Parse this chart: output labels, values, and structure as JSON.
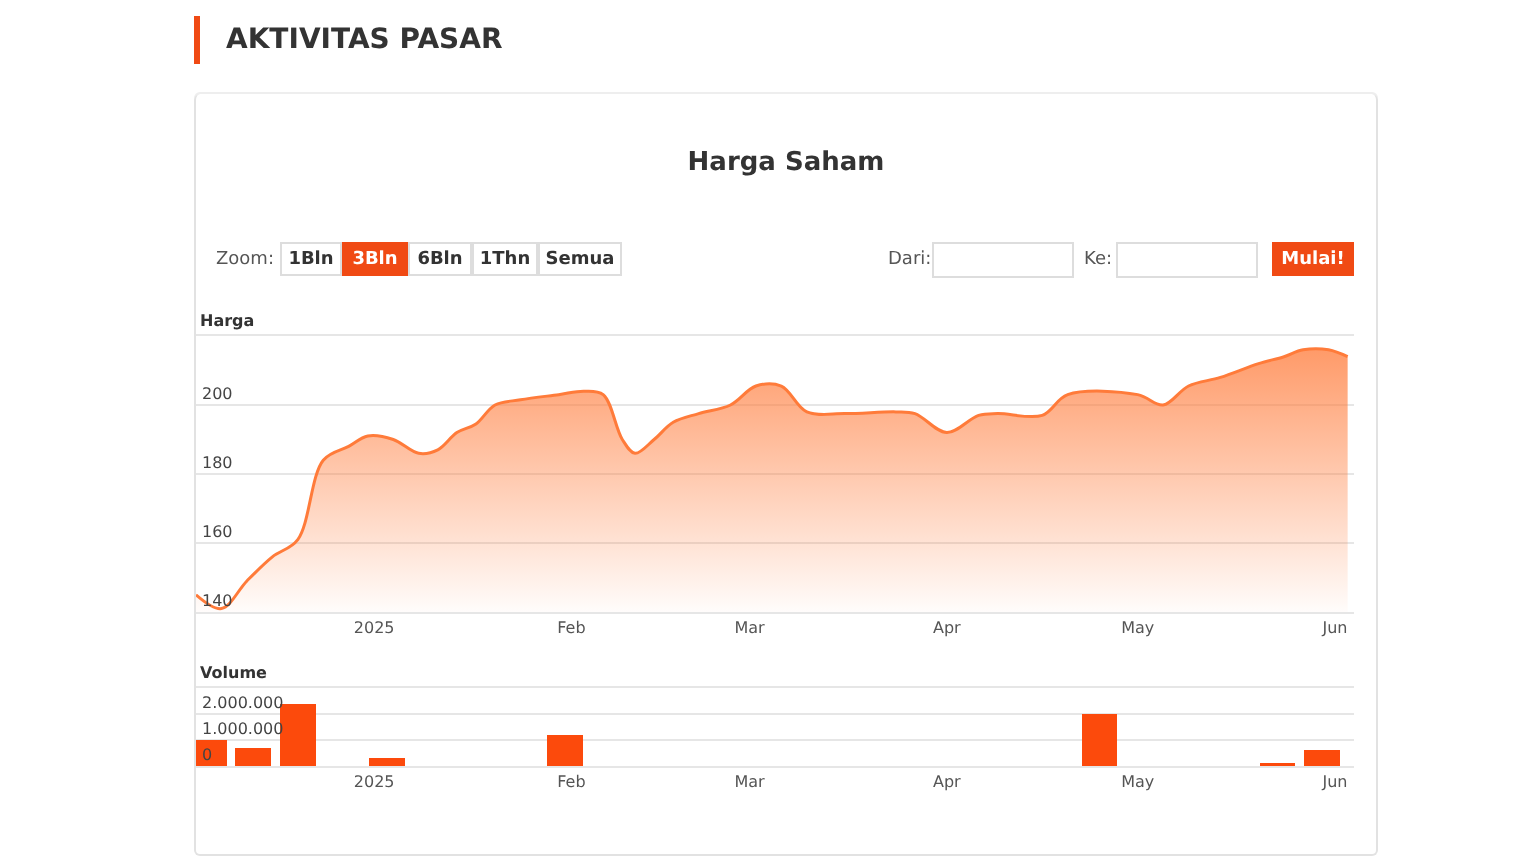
{
  "chart_data": [
    {
      "type": "other",
      "title": "AKTIVITAS PASAR",
      "subtitle": "Harga Saham",
      "annotations": [
        "Zoom:",
        "1Bln",
        "3Bln",
        "6Bln",
        "1Thn",
        "Semua",
        "Dari:",
        "Ke:",
        "Mulai!"
      ]
    },
    {
      "type": "area",
      "ylabel": "Harga",
      "color": "#ff7b3a",
      "grid": "y",
      "x": [
        "2024-12-04",
        "2024-12-08",
        "2024-12-12",
        "2024-12-16",
        "2024-12-20",
        "2024-12-24",
        "2024-12-28",
        "2024-12-31",
        "2025-01-04",
        "2025-01-08",
        "2025-01-11",
        "2025-01-14",
        "2025-01-17",
        "2025-01-20",
        "2025-01-24",
        "2025-01-30",
        "2025-02-03",
        "2025-02-06",
        "2025-02-09",
        "2025-02-11",
        "2025-02-14",
        "2025-02-17",
        "2025-02-21",
        "2025-02-26",
        "2025-03-02",
        "2025-03-06",
        "2025-03-10",
        "2025-03-16",
        "2025-03-24",
        "2025-03-27",
        "2025-04-01",
        "2025-04-06",
        "2025-04-09",
        "2025-04-16",
        "2025-04-20",
        "2025-05-01",
        "2025-05-05",
        "2025-05-09",
        "2025-05-14",
        "2025-05-20",
        "2025-05-24",
        "2025-05-27",
        "2025-05-31",
        "2025-06-03"
      ],
      "values": [
        145,
        141,
        149,
        156,
        161,
        184,
        188,
        191,
        190,
        186,
        187,
        192,
        194.5,
        200,
        201.5,
        203,
        204,
        203,
        190,
        186,
        190,
        195,
        197.5,
        200,
        205.5,
        205.5,
        198,
        197.5,
        198,
        197.5,
        192,
        197,
        197.5,
        197,
        203,
        203,
        200,
        205.5,
        208,
        212,
        214,
        216,
        216,
        214
      ],
      "xlim": [
        "2024-12-04",
        "2025-06-04"
      ],
      "xticks": [
        {
          "value": "2025-01-01",
          "label": "2025"
        },
        {
          "value": "2025-02-01",
          "label": "Feb"
        },
        {
          "value": "2025-03-01",
          "label": "Mar"
        },
        {
          "value": "2025-04-01",
          "label": "Apr"
        },
        {
          "value": "2025-05-01",
          "label": "May"
        },
        {
          "value": "2025-06-01",
          "label": "Jun"
        }
      ],
      "ylim": [
        140,
        220
      ],
      "yticks": [
        140,
        160,
        180,
        200,
        {
          "value": 220,
          "label": null
        }
      ]
    },
    {
      "type": "bar",
      "ylabel": "Volume",
      "color": "#fc4a0c",
      "grid": "y",
      "x": [
        "2024-12-06",
        "2024-12-13",
        "2024-12-20",
        "2024-12-27",
        "2025-01-03",
        "2025-01-10",
        "2025-01-17",
        "2025-01-24",
        "2025-01-31",
        "2025-02-07",
        "2025-02-14",
        "2025-02-21",
        "2025-02-28",
        "2025-03-07",
        "2025-03-14",
        "2025-03-21",
        "2025-03-28",
        "2025-04-04",
        "2025-04-11",
        "2025-04-18",
        "2025-04-25",
        "2025-05-02",
        "2025-05-09",
        "2025-05-16",
        "2025-05-23",
        "2025-05-30"
      ],
      "values": [
        1000000,
        700000,
        2400000,
        0,
        300000,
        0,
        0,
        0,
        1200000,
        0,
        0,
        0,
        0,
        0,
        0,
        0,
        0,
        0,
        0,
        0,
        2000000,
        0,
        0,
        0,
        100000,
        600000
      ],
      "xlim": [
        "2024-12-04",
        "2025-06-04"
      ],
      "xticks": [
        {
          "value": "2025-01-01",
          "label": "2025"
        },
        {
          "value": "2025-02-01",
          "label": "Feb"
        },
        {
          "value": "2025-03-01",
          "label": "Mar"
        },
        {
          "value": "2025-04-01",
          "label": "Apr"
        },
        {
          "value": "2025-05-01",
          "label": "May"
        },
        {
          "value": "2025-06-01",
          "label": "Jun"
        }
      ],
      "ylim": [
        0,
        3000000
      ],
      "yticks": [
        0,
        {
          "value": 1000000,
          "label": "1.000.000"
        },
        {
          "value": 2000000,
          "label": "2.000.000"
        },
        {
          "value": 3000000,
          "label": null
        }
      ]
    }
  ]
}
